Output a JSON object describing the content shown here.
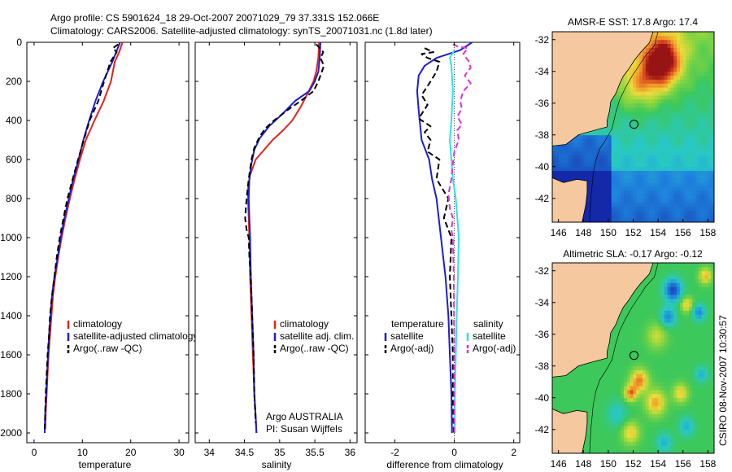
{
  "header": {
    "line1": "Argo profile: CS 5901624_18 29-Oct-2007 20071029_79 37.331S 152.066E",
    "line2": "Climatology: CARS2006. Satellite-adjusted climatology: synTS_20071031.nc (1.8d later)"
  },
  "stamp": "CSIRO 08-Nov-2007 10:30:57",
  "credit": {
    "line1": "Argo AUSTRALIA",
    "line2": "PI: Susan Wijffels"
  },
  "colors": {
    "climatology": "#e2231a",
    "satellite": "#1d1dd8",
    "argo": "#000000",
    "sat_sal": "#33e0e8",
    "argo_sal": "#e030d8",
    "land": "#f5c8a0",
    "ocean_bg": "#ffffff"
  },
  "chart_data": [
    {
      "type": "line",
      "xlabel": "temperature",
      "xlim": [
        -1.5,
        32
      ],
      "ylim": [
        2050,
        0
      ],
      "xticks": [
        0,
        10,
        20,
        30
      ],
      "yticks": [
        0,
        200,
        400,
        600,
        800,
        1000,
        1200,
        1400,
        1600,
        1800,
        2000
      ],
      "legend": [
        "climatology",
        "satellite-adjusted climatology",
        "Argo(..raw -QC)"
      ],
      "series": [
        {
          "name": "climatology",
          "style": "solid",
          "color": "#e2231a",
          "points": [
            [
              18.3,
              0
            ],
            [
              17.6,
              50
            ],
            [
              16.7,
              100
            ],
            [
              15.9,
              200
            ],
            [
              14.4,
              300
            ],
            [
              12.5,
              400
            ],
            [
              10.7,
              500
            ],
            [
              9.5,
              600
            ],
            [
              8.4,
              700
            ],
            [
              7.4,
              800
            ],
            [
              6.5,
              900
            ],
            [
              5.7,
              1000
            ],
            [
              5.0,
              1100
            ],
            [
              4.4,
              1200
            ],
            [
              3.9,
              1300
            ],
            [
              3.6,
              1400
            ],
            [
              3.3,
              1500
            ],
            [
              3.0,
              1600
            ],
            [
              2.8,
              1700
            ],
            [
              2.6,
              1800
            ],
            [
              2.4,
              1900
            ],
            [
              2.3,
              1980
            ]
          ]
        },
        {
          "name": "satellite-adjusted climatology",
          "style": "solid",
          "color": "#1d1dd8",
          "points": [
            [
              17.8,
              0
            ],
            [
              17.0,
              50
            ],
            [
              16.2,
              100
            ],
            [
              14.3,
              200
            ],
            [
              12.7,
              300
            ],
            [
              11.4,
              400
            ],
            [
              10.2,
              500
            ],
            [
              9.2,
              600
            ],
            [
              8.1,
              700
            ],
            [
              7.2,
              800
            ],
            [
              6.3,
              900
            ],
            [
              5.5,
              1000
            ],
            [
              4.9,
              1100
            ],
            [
              4.2,
              1200
            ],
            [
              3.7,
              1300
            ],
            [
              3.4,
              1400
            ],
            [
              3.1,
              1500
            ],
            [
              2.9,
              1600
            ],
            [
              2.7,
              1700
            ],
            [
              2.5,
              1800
            ],
            [
              2.3,
              1900
            ],
            [
              2.2,
              2000
            ]
          ]
        },
        {
          "name": "Argo(..raw -QC)",
          "style": "dashed",
          "color": "#000000",
          "points": [
            [
              17.4,
              10
            ],
            [
              16.3,
              30
            ],
            [
              17.1,
              50
            ],
            [
              15.8,
              100
            ],
            [
              14.5,
              200
            ],
            [
              13.3,
              300
            ],
            [
              11.5,
              400
            ],
            [
              10.3,
              500
            ],
            [
              9.1,
              600
            ],
            [
              8.0,
              700
            ],
            [
              6.9,
              800
            ],
            [
              6.1,
              900
            ],
            [
              5.3,
              1000
            ],
            [
              4.7,
              1100
            ],
            [
              4.2,
              1200
            ],
            [
              3.7,
              1300
            ],
            [
              3.3,
              1400
            ],
            [
              3.1,
              1500
            ],
            [
              2.8,
              1600
            ],
            [
              2.6,
              1700
            ],
            [
              2.4,
              1800
            ],
            [
              2.3,
              1900
            ],
            [
              2.2,
              1980
            ]
          ]
        }
      ]
    },
    {
      "type": "line",
      "xlabel": "salinity",
      "xlim": [
        33.8,
        36.1
      ],
      "ylim": [
        2050,
        0
      ],
      "xticks": [
        34,
        34.5,
        35,
        35.5,
        36
      ],
      "legend": [
        "climatology",
        "satellite adj. clim.",
        "Argo(..raw -QC)"
      ],
      "series": [
        {
          "name": "climatology",
          "style": "solid",
          "color": "#e2231a",
          "points": [
            [
              35.56,
              0
            ],
            [
              35.55,
              80
            ],
            [
              35.52,
              150
            ],
            [
              35.48,
              200
            ],
            [
              35.4,
              260
            ],
            [
              35.3,
              330
            ],
            [
              35.18,
              400
            ],
            [
              35.05,
              450
            ],
            [
              34.9,
              500
            ],
            [
              34.78,
              550
            ],
            [
              34.66,
              600
            ],
            [
              34.58,
              680
            ],
            [
              34.55,
              750
            ],
            [
              34.55,
              800
            ],
            [
              34.56,
              900
            ],
            [
              34.57,
              1000
            ],
            [
              34.58,
              1200
            ],
            [
              34.6,
              1400
            ],
            [
              34.62,
              1600
            ],
            [
              34.64,
              1800
            ],
            [
              34.66,
              1920
            ],
            [
              34.67,
              2000
            ]
          ]
        },
        {
          "name": "satellite adj. clim.",
          "style": "solid",
          "color": "#1d1dd8",
          "points": [
            [
              35.58,
              0
            ],
            [
              35.57,
              80
            ],
            [
              35.55,
              150
            ],
            [
              35.5,
              200
            ],
            [
              35.42,
              250
            ],
            [
              35.22,
              300
            ],
            [
              35.03,
              370
            ],
            [
              34.85,
              430
            ],
            [
              34.72,
              490
            ],
            [
              34.64,
              550
            ],
            [
              34.6,
              620
            ],
            [
              34.57,
              700
            ],
            [
              34.56,
              800
            ],
            [
              34.57,
              900
            ],
            [
              34.58,
              1000
            ],
            [
              34.59,
              1200
            ],
            [
              34.61,
              1400
            ],
            [
              34.63,
              1600
            ],
            [
              34.64,
              1800
            ],
            [
              34.66,
              1920
            ],
            [
              34.67,
              2000
            ]
          ]
        },
        {
          "name": "Argo(..raw -QC)",
          "style": "dashed",
          "color": "#000000",
          "points": [
            [
              35.52,
              10
            ],
            [
              35.62,
              50
            ],
            [
              35.58,
              80
            ],
            [
              35.63,
              120
            ],
            [
              35.59,
              160
            ],
            [
              35.55,
              200
            ],
            [
              35.48,
              250
            ],
            [
              35.3,
              300
            ],
            [
              35.1,
              350
            ],
            [
              34.92,
              400
            ],
            [
              34.8,
              440
            ],
            [
              34.72,
              480
            ],
            [
              34.64,
              540
            ],
            [
              34.6,
              600
            ],
            [
              34.56,
              700
            ],
            [
              34.53,
              800
            ],
            [
              34.51,
              900
            ],
            [
              34.53,
              960
            ],
            [
              34.56,
              1000
            ],
            [
              34.57,
              1100
            ],
            [
              34.59,
              1200
            ],
            [
              34.61,
              1400
            ],
            [
              34.63,
              1600
            ],
            [
              34.64,
              1800
            ],
            [
              34.66,
              1950
            ]
          ]
        }
      ]
    },
    {
      "type": "line",
      "xlabel": "difference from climatology",
      "xlim": [
        -3.0,
        2.2
      ],
      "ylim": [
        2050,
        0
      ],
      "xticks": [
        -2,
        0,
        2
      ],
      "legend_left_title": "temperature",
      "legend_right_title": "salinity",
      "legend_left": [
        "satellite",
        "Argo(-adj)"
      ],
      "legend_right": [
        "satellite",
        "Argo(-adj)"
      ],
      "series": [
        {
          "name": "satellite",
          "group": "temperature",
          "style": "solid",
          "color": "#1d1dd8",
          "points": [
            [
              0.6,
              0
            ],
            [
              0.2,
              40
            ],
            [
              -0.6,
              80
            ],
            [
              -1.0,
              120
            ],
            [
              -1.2,
              170
            ],
            [
              -1.25,
              250
            ],
            [
              -1.2,
              350
            ],
            [
              -1.1,
              500
            ],
            [
              -0.85,
              600
            ],
            [
              -0.75,
              700
            ],
            [
              -0.6,
              800
            ],
            [
              -0.45,
              1000
            ],
            [
              -0.3,
              1200
            ],
            [
              -0.2,
              1400
            ],
            [
              -0.15,
              1600
            ],
            [
              -0.1,
              1800
            ],
            [
              -0.08,
              2000
            ]
          ]
        },
        {
          "name": "Argo(-adj)",
          "group": "temperature",
          "style": "dashed",
          "color": "#000000",
          "points": [
            [
              -1.0,
              30
            ],
            [
              -0.7,
              50
            ],
            [
              -1.1,
              60
            ],
            [
              -0.9,
              80
            ],
            [
              -0.5,
              100
            ],
            [
              -0.6,
              150
            ],
            [
              -0.8,
              200
            ],
            [
              -1.1,
              270
            ],
            [
              -0.9,
              320
            ],
            [
              -1.2,
              390
            ],
            [
              -0.8,
              430
            ],
            [
              -1.0,
              460
            ],
            [
              -0.8,
              500
            ],
            [
              -0.9,
              560
            ],
            [
              -0.5,
              600
            ],
            [
              -0.6,
              700
            ],
            [
              -0.2,
              800
            ],
            [
              -0.35,
              900
            ],
            [
              -0.1,
              1000
            ],
            [
              -0.15,
              1200
            ],
            [
              -0.1,
              1400
            ],
            [
              -0.05,
              1600
            ],
            [
              -0.05,
              1800
            ],
            [
              -0.02,
              2000
            ]
          ]
        },
        {
          "name": "satellite",
          "group": "salinity",
          "style": "solid",
          "color": "#33e0e8",
          "points": [
            [
              0.0,
              40
            ],
            [
              -0.15,
              80
            ],
            [
              -0.1,
              120
            ],
            [
              -0.05,
              250
            ],
            [
              -0.1,
              400
            ],
            [
              -0.15,
              500
            ],
            [
              -0.1,
              600
            ],
            [
              -0.05,
              700
            ],
            [
              0.05,
              800
            ],
            [
              0.1,
              900
            ],
            [
              0.15,
              1000
            ],
            [
              0.12,
              1200
            ],
            [
              0.08,
              1400
            ],
            [
              0.05,
              1600
            ],
            [
              0.02,
              1800
            ],
            [
              0.01,
              2000
            ]
          ]
        },
        {
          "name": "Argo(-adj)",
          "group": "salinity",
          "style": "dashed",
          "color": "#e030d8",
          "points": [
            [
              -0.05,
              10
            ],
            [
              0.1,
              20
            ],
            [
              0.45,
              30
            ],
            [
              0.3,
              60
            ],
            [
              0.5,
              100
            ],
            [
              0.55,
              130
            ],
            [
              0.35,
              170
            ],
            [
              0.55,
              210
            ],
            [
              0.3,
              250
            ],
            [
              0.2,
              300
            ],
            [
              0.25,
              340
            ],
            [
              0.1,
              380
            ],
            [
              0.25,
              420
            ],
            [
              0.1,
              450
            ],
            [
              0.15,
              500
            ],
            [
              0.0,
              560
            ],
            [
              -0.05,
              620
            ],
            [
              -0.1,
              700
            ],
            [
              -0.2,
              780
            ],
            [
              -0.15,
              850
            ],
            [
              -0.05,
              900
            ],
            [
              -0.1,
              960
            ],
            [
              -0.05,
              1000
            ],
            [
              -0.02,
              1200
            ],
            [
              -0.01,
              1500
            ],
            [
              0.0,
              1800
            ],
            [
              0.0,
              2000
            ]
          ]
        }
      ]
    },
    {
      "type": "heatmap",
      "title": "AMSR-E SST: 17.8  Argo: 17.4",
      "xlim": [
        145.5,
        158.5
      ],
      "ylim": [
        -43.5,
        -31.5
      ],
      "xticks": [
        146,
        148,
        150,
        152,
        154,
        156,
        158
      ],
      "yticks": [
        -32,
        -34,
        -36,
        -38,
        -40,
        -42
      ],
      "argo_position": [
        152.066,
        -37.331
      ]
    },
    {
      "type": "heatmap",
      "title": "Altimetric SLA: -0.17  Argo: -0.12",
      "xlim": [
        145.5,
        158.5
      ],
      "ylim": [
        -43.5,
        -31.5
      ],
      "xticks": [
        146,
        148,
        150,
        152,
        154,
        156,
        158
      ],
      "yticks": [
        -32,
        -34,
        -36,
        -38,
        -40,
        -42
      ],
      "argo_position": [
        152.066,
        -37.331
      ]
    }
  ]
}
